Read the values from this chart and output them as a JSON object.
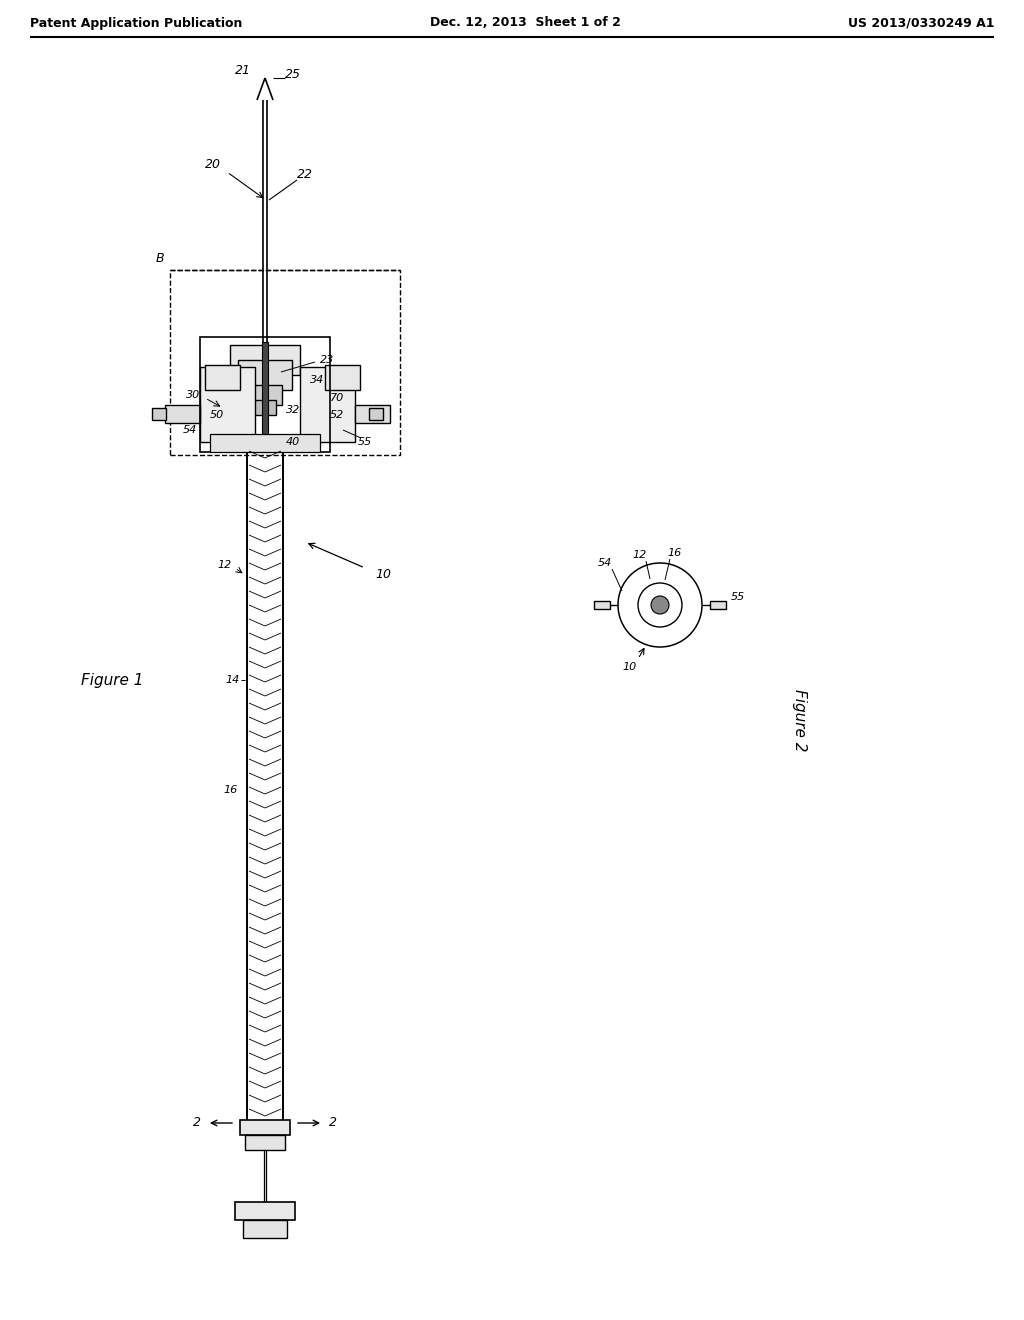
{
  "bg_color": "#ffffff",
  "header_left": "Patent Application Publication",
  "header_center": "Dec. 12, 2013  Sheet 1 of 2",
  "header_right": "US 2013/0330249 A1",
  "fig1_label": "Figure 1",
  "fig2_label": "Figure 2",
  "line_color": "#000000"
}
